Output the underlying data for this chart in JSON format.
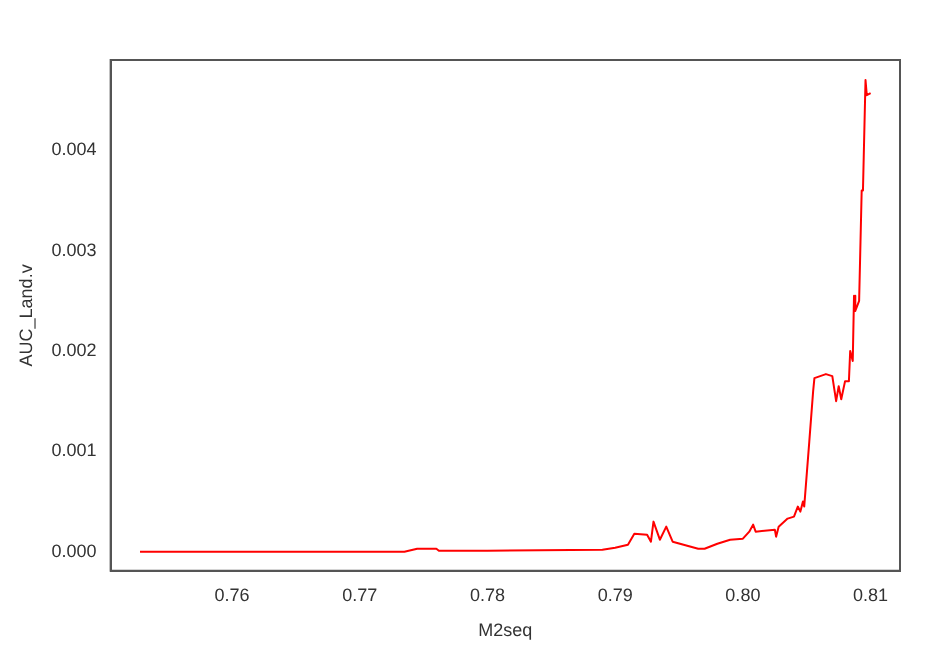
{
  "chart_data": {
    "type": "line",
    "xlabel": "M2seq",
    "ylabel": "AUC_Land.v",
    "xlim": [
      0.7505,
      0.8123
    ],
    "ylim": [
      -0.00019,
      0.0049
    ],
    "xticks": [
      0.76,
      0.77,
      0.78,
      0.79,
      {
        "value": 0.8,
        "label": "0.80"
      },
      0.81
    ],
    "yticks": [
      {
        "value": 0,
        "label": "0.000"
      },
      {
        "value": 0.001,
        "label": "0.001"
      },
      {
        "value": 0.002,
        "label": "0.002"
      },
      {
        "value": 0.003,
        "label": "0.003"
      },
      {
        "value": 0.004,
        "label": "0.004"
      }
    ],
    "grid": false,
    "legend": false,
    "marker": "none",
    "line_style": "solid",
    "series": [
      {
        "color": "#ff0000",
        "x": [
          0.7528,
          0.765,
          0.7735,
          0.7745,
          0.776,
          0.7762,
          0.78,
          0.789,
          0.79,
          0.791,
          0.7915,
          0.7925,
          0.7928,
          0.793,
          0.7935,
          0.794,
          0.7945,
          0.7965,
          0.797,
          0.798,
          0.7985,
          0.799,
          0.8,
          0.8005,
          0.8008,
          0.801,
          0.8025,
          0.8026,
          0.8028,
          0.8035,
          0.804,
          0.8043,
          0.8045,
          0.8047,
          0.8048,
          0.8052,
          0.8055,
          0.8056,
          0.8065,
          0.807,
          0.8073,
          0.8075,
          0.8077,
          0.808,
          0.8083,
          0.8084,
          0.8086,
          0.8087,
          0.8088,
          0.8091,
          0.8093,
          0.8094,
          0.8096,
          0.8097,
          0.81
        ],
        "values": [
          0,
          0,
          0,
          3e-05,
          3e-05,
          1e-05,
          1e-05,
          2e-05,
          4e-05,
          7e-05,
          0.00018,
          0.00017,
          0.0001,
          0.0003,
          0.00012,
          0.00025,
          0.0001,
          3e-05,
          3e-05,
          8e-05,
          0.0001,
          0.00012,
          0.00013,
          0.0002,
          0.00027,
          0.0002,
          0.00022,
          0.00015,
          0.00025,
          0.00033,
          0.00035,
          0.00045,
          0.0004,
          0.0005,
          0.00045,
          0.0011,
          0.0016,
          0.00173,
          0.00177,
          0.00175,
          0.0015,
          0.00165,
          0.00152,
          0.0017,
          0.0017,
          0.002,
          0.0019,
          0.00255,
          0.0024,
          0.0025,
          0.0036,
          0.0036,
          0.0047,
          0.00455,
          0.00457
        ]
      }
    ]
  }
}
